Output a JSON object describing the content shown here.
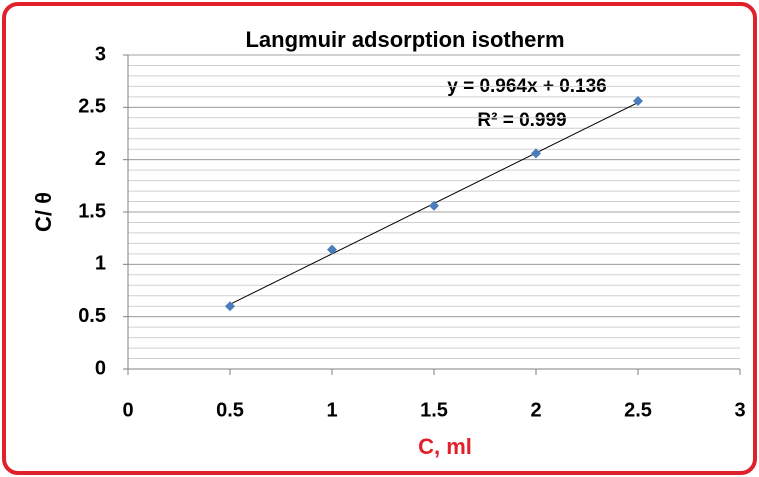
{
  "chart_data": {
    "type": "scatter",
    "title": "Langmuir adsorption isotherm",
    "x_label": "C, ml",
    "y_label": "C/ θ",
    "x": [
      0.5,
      1,
      1.5,
      2,
      2.5
    ],
    "series": [
      {
        "name": null,
        "color": "#4a7ebb",
        "values": [
          0.6,
          1.14,
          1.56,
          2.06,
          2.56
        ]
      }
    ],
    "xlim": [
      0,
      3
    ],
    "xticks": [
      0,
      0.5,
      1,
      1.5,
      2,
      2.5,
      3
    ],
    "ylim": [
      0,
      3
    ],
    "yticks": [
      0,
      0.5,
      1,
      1.5,
      2,
      2.5,
      3
    ],
    "grid": true,
    "y_minor_step": 0.1,
    "trendline": {
      "slope": 0.964,
      "intercept": 0.136,
      "equation": "y = 0.964x + 0.136",
      "r2_label": "R² = 0.999",
      "color": "#000000"
    }
  }
}
